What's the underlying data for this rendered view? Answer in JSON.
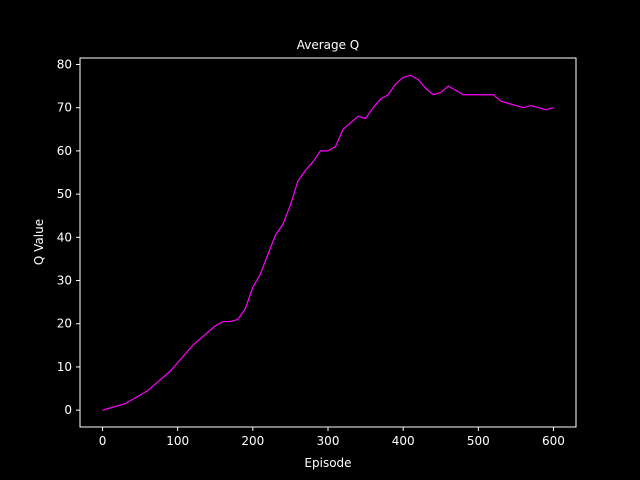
{
  "chart_data": {
    "type": "line",
    "title": "Average Q",
    "xlabel": "Episode",
    "ylabel": "Q Value",
    "xlim": [
      -30,
      630
    ],
    "ylim": [
      -3.9,
      81.5
    ],
    "xticks": [
      0,
      100,
      200,
      300,
      400,
      500,
      600
    ],
    "yticks": [
      0,
      10,
      20,
      30,
      40,
      50,
      60,
      70,
      80
    ],
    "grid": false,
    "legend": "none",
    "colors": {
      "background": "#000000",
      "axes": "#ffffff",
      "line": "#ff00ff"
    },
    "series": [
      {
        "color": "#ff00ff",
        "x": [
          0,
          10,
          20,
          30,
          40,
          50,
          60,
          70,
          80,
          90,
          100,
          110,
          120,
          130,
          140,
          150,
          160,
          170,
          180,
          190,
          200,
          210,
          220,
          230,
          240,
          250,
          260,
          270,
          280,
          290,
          300,
          310,
          320,
          330,
          340,
          350,
          360,
          370,
          380,
          390,
          400,
          410,
          420,
          430,
          440,
          450,
          460,
          470,
          480,
          490,
          500,
          510,
          520,
          530,
          540,
          550,
          560,
          570,
          580,
          590,
          600
        ],
        "y": [
          0,
          0.5,
          1,
          1.5,
          2.5,
          3.5,
          4.5,
          6,
          7.5,
          9,
          11,
          13,
          15,
          16.5,
          18,
          19.5,
          20.5,
          20.5,
          21,
          23.5,
          28.5,
          31.5,
          36,
          40.5,
          43,
          47.5,
          53,
          55.5,
          57.5,
          60,
          60,
          61,
          65,
          66.5,
          68,
          67.5,
          70,
          72,
          73,
          75.5,
          77,
          77.5,
          76.5,
          74.5,
          73,
          73.5,
          75,
          74,
          73,
          73,
          73,
          73,
          73,
          71.5,
          71,
          70.5,
          70,
          70.5,
          70,
          69.5,
          70
        ]
      }
    ]
  }
}
